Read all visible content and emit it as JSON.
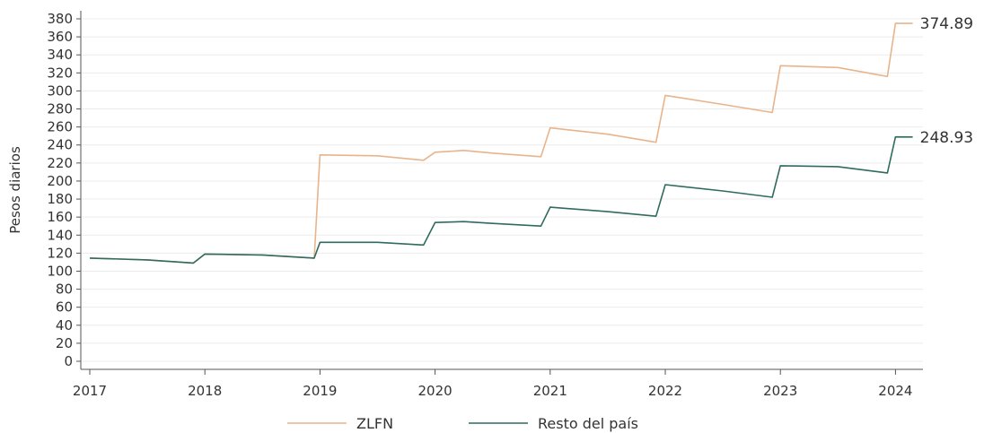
{
  "chart_data": {
    "type": "line",
    "xlabel": "",
    "ylabel": "Pesos diarios",
    "xlim": [
      2017,
      2024.25
    ],
    "ylim": [
      0,
      380
    ],
    "x_ticks": [
      "2017",
      "2018",
      "2019",
      "2020",
      "2021",
      "2022",
      "2023",
      "2024"
    ],
    "y_ticks": [
      "0",
      "20",
      "40",
      "60",
      "80",
      "100",
      "120",
      "140",
      "160",
      "180",
      "200",
      "220",
      "240",
      "260",
      "280",
      "300",
      "320",
      "340",
      "360",
      "380"
    ],
    "grid": true,
    "legend_position": "bottom",
    "series": [
      {
        "name": "ZLFN",
        "color": "#e8b48c",
        "end_label": "374.89",
        "points": [
          [
            2017.0,
            114.5
          ],
          [
            2017.5,
            112.5
          ],
          [
            2017.9,
            109.0
          ],
          [
            2018.0,
            119.0
          ],
          [
            2018.5,
            118.0
          ],
          [
            2018.95,
            114.5
          ],
          [
            2019.0,
            229.0
          ],
          [
            2019.5,
            228.0
          ],
          [
            2019.9,
            223.0
          ],
          [
            2020.0,
            232.0
          ],
          [
            2020.25,
            234.0
          ],
          [
            2020.5,
            231.0
          ],
          [
            2020.92,
            227.0
          ],
          [
            2021.0,
            259.0
          ],
          [
            2021.5,
            252.0
          ],
          [
            2021.92,
            243.0
          ],
          [
            2022.0,
            295.0
          ],
          [
            2022.5,
            285.0
          ],
          [
            2022.93,
            276.0
          ],
          [
            2023.0,
            328.0
          ],
          [
            2023.5,
            326.0
          ],
          [
            2023.93,
            316.0
          ],
          [
            2024.0,
            375.0
          ],
          [
            2024.15,
            374.89
          ]
        ]
      },
      {
        "name": "Resto del país",
        "color": "#2f6b5e",
        "end_label": "248.93",
        "points": [
          [
            2017.0,
            114.5
          ],
          [
            2017.5,
            112.5
          ],
          [
            2017.9,
            109.0
          ],
          [
            2018.0,
            119.0
          ],
          [
            2018.5,
            118.0
          ],
          [
            2018.95,
            114.5
          ],
          [
            2019.0,
            132.0
          ],
          [
            2019.5,
            132.0
          ],
          [
            2019.9,
            129.0
          ],
          [
            2020.0,
            154.0
          ],
          [
            2020.25,
            155.0
          ],
          [
            2020.5,
            153.0
          ],
          [
            2020.92,
            150.0
          ],
          [
            2021.0,
            171.0
          ],
          [
            2021.5,
            166.0
          ],
          [
            2021.92,
            161.0
          ],
          [
            2022.0,
            196.0
          ],
          [
            2022.5,
            189.0
          ],
          [
            2022.93,
            182.0
          ],
          [
            2023.0,
            217.0
          ],
          [
            2023.5,
            216.0
          ],
          [
            2023.93,
            209.0
          ],
          [
            2024.0,
            249.0
          ],
          [
            2024.15,
            248.93
          ]
        ]
      }
    ]
  }
}
